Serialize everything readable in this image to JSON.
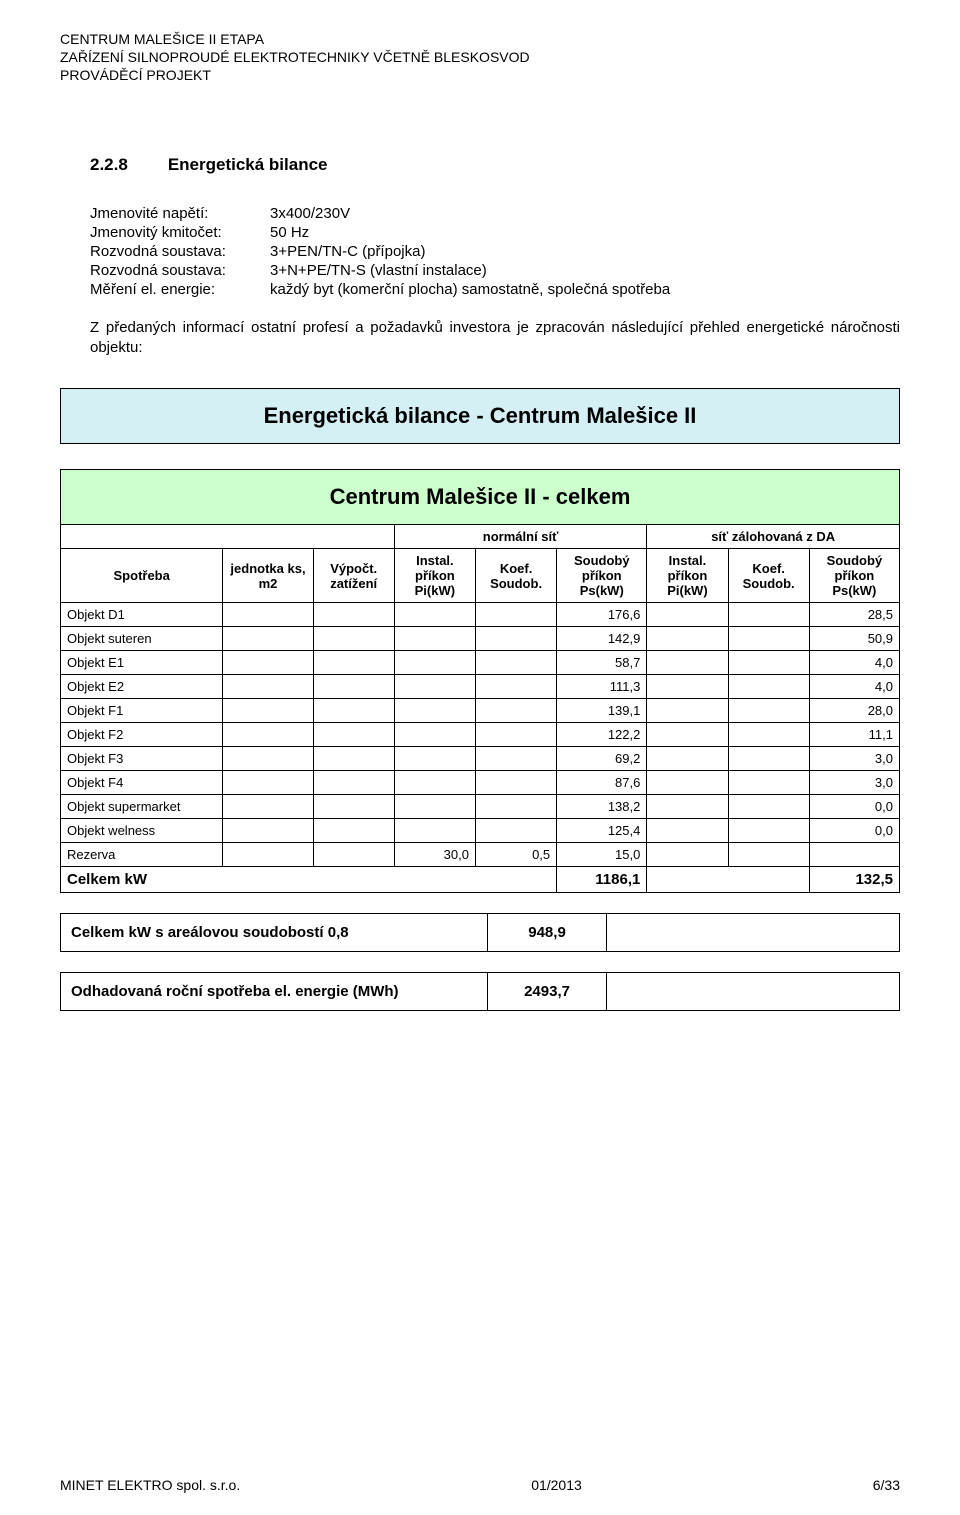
{
  "header": {
    "line1": "CENTRUM MALEŠICE II ETAPA",
    "line2": "ZAŘÍZENÍ SILNOPROUDÉ ELEKTROTECHNIKY VČETNĚ BLESKOSVOD",
    "line3": "PROVÁDĚCÍ PROJEKT"
  },
  "section": {
    "number": "2.2.8",
    "title": "Energetická bilance"
  },
  "specs": [
    {
      "label": "Jmenovité napětí:",
      "value": "3x400/230V"
    },
    {
      "label": "Jmenovitý kmitočet:",
      "value": "50 Hz"
    },
    {
      "label": "Rozvodná soustava:",
      "value": "3+PEN/TN-C   (přípojka)"
    },
    {
      "label": "Rozvodná soustava:",
      "value": "3+N+PE/TN-S (vlastní instalace)"
    },
    {
      "label": "Měření el. energie:",
      "value": "každý byt (komerční plocha) samostatně, společná spotřeba"
    }
  ],
  "paragraph": "Z předaných informací ostatní profesí a požadavků investora je zpracován následující přehled energetické náročnosti objektu:",
  "banner_blue": "Energetická bilance - Centrum Malešice II",
  "banner_green": "Centrum Malešice II - celkem",
  "table": {
    "group1": "normální síť",
    "group2": "síť zálohovaná z DA",
    "cols": {
      "spotreba": "Spotřeba",
      "jednotka": "jednotka ks, m2",
      "vypoct": "Výpočt. zatížení",
      "instal1": "Instal. příkon Pi(kW)",
      "koef1": "Koef. Soudob.",
      "soud1": "Soudobý příkon Ps(kW)",
      "instal2": "Instal. příkon Pi(kW)",
      "koef2": "Koef. Soudob.",
      "soud2": "Soudobý příkon Ps(kW)"
    },
    "rows": [
      {
        "label": "Objekt D1",
        "jed": "",
        "vyp": "",
        "i1": "",
        "k1": "",
        "s1": "176,6",
        "i2": "",
        "k2": "",
        "s2": "28,5"
      },
      {
        "label": "Objekt suteren",
        "jed": "",
        "vyp": "",
        "i1": "",
        "k1": "",
        "s1": "142,9",
        "i2": "",
        "k2": "",
        "s2": "50,9"
      },
      {
        "label": "Objekt E1",
        "jed": "",
        "vyp": "",
        "i1": "",
        "k1": "",
        "s1": "58,7",
        "i2": "",
        "k2": "",
        "s2": "4,0"
      },
      {
        "label": "Objekt E2",
        "jed": "",
        "vyp": "",
        "i1": "",
        "k1": "",
        "s1": "111,3",
        "i2": "",
        "k2": "",
        "s2": "4,0"
      },
      {
        "label": "Objekt F1",
        "jed": "",
        "vyp": "",
        "i1": "",
        "k1": "",
        "s1": "139,1",
        "i2": "",
        "k2": "",
        "s2": "28,0"
      },
      {
        "label": "Objekt F2",
        "jed": "",
        "vyp": "",
        "i1": "",
        "k1": "",
        "s1": "122,2",
        "i2": "",
        "k2": "",
        "s2": "11,1"
      },
      {
        "label": "Objekt F3",
        "jed": "",
        "vyp": "",
        "i1": "",
        "k1": "",
        "s1": "69,2",
        "i2": "",
        "k2": "",
        "s2": "3,0"
      },
      {
        "label": "Objekt F4",
        "jed": "",
        "vyp": "",
        "i1": "",
        "k1": "",
        "s1": "87,6",
        "i2": "",
        "k2": "",
        "s2": "3,0"
      },
      {
        "label": "Objekt supermarket",
        "jed": "",
        "vyp": "",
        "i1": "",
        "k1": "",
        "s1": "138,2",
        "i2": "",
        "k2": "",
        "s2": "0,0"
      },
      {
        "label": "Objekt welness",
        "jed": "",
        "vyp": "",
        "i1": "",
        "k1": "",
        "s1": "125,4",
        "i2": "",
        "k2": "",
        "s2": "0,0"
      },
      {
        "label": "Rezerva",
        "jed": "",
        "vyp": "",
        "i1": "30,0",
        "k1": "0,5",
        "s1": "15,0",
        "i2": "",
        "k2": "",
        "s2": ""
      }
    ],
    "total": {
      "label": "Celkem kW",
      "s1": "1186,1",
      "s2": "132,5"
    }
  },
  "summary1": {
    "label": "Celkem kW s areálovou soudobostí 0,8",
    "value": "948,9"
  },
  "summary2": {
    "label": "Odhadovaná roční spotřeba el. energie (MWh)",
    "value": "2493,7"
  },
  "footer": {
    "left": "MINET ELEKTRO spol. s.r.o.",
    "center": "01/2013",
    "right": "6/33"
  },
  "style": {
    "blue_bg": "#d4f0f5",
    "green_bg": "#ccffcc",
    "border_color": "#000000",
    "text_color": "#000000",
    "page_bg": "#ffffff"
  }
}
